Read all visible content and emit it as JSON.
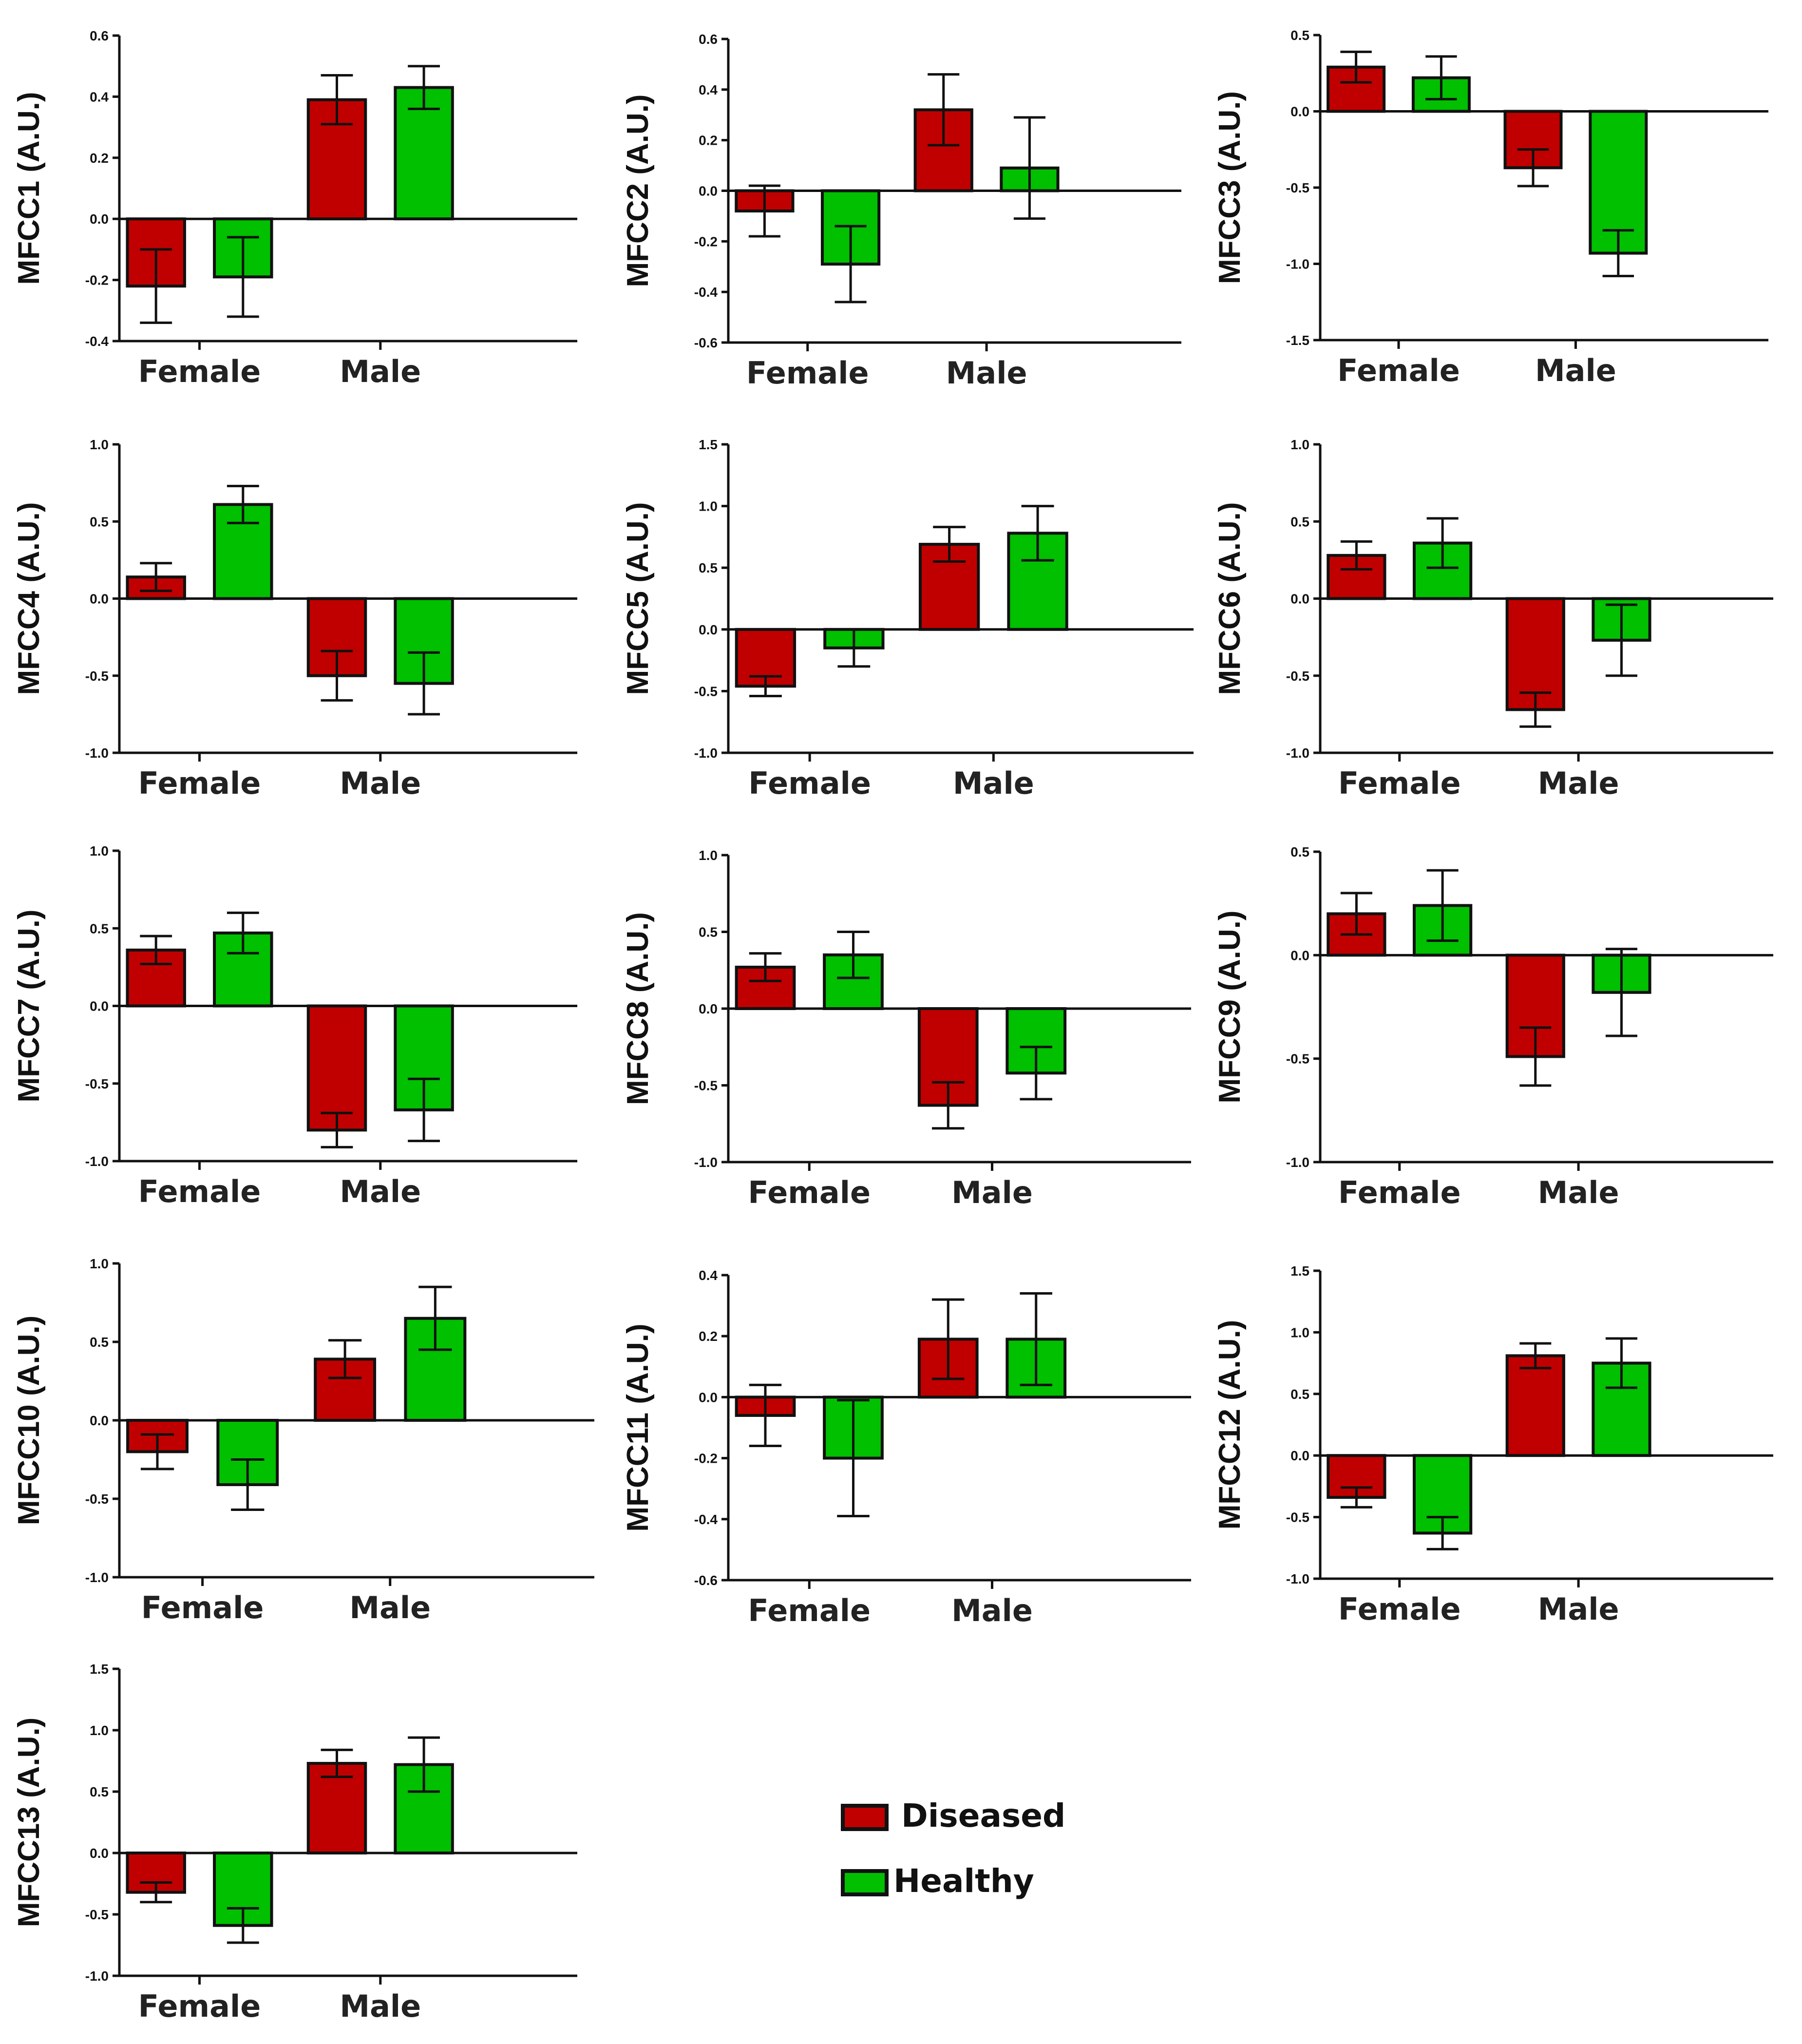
{
  "colors": {
    "diseased": "#c00000",
    "healthy": "#00c000",
    "axis": "#111111"
  },
  "legend": {
    "position": "lower-middle-right",
    "entries": [
      {
        "label": "Diseased",
        "color": "#c00000"
      },
      {
        "label": "Healthy",
        "color": "#00c000"
      }
    ]
  },
  "chart_data": [
    {
      "type": "bar",
      "ylabel": "MFCC1 (A.U.)",
      "categories": [
        "Female",
        "Male"
      ],
      "ylim": [
        -0.4,
        0.6
      ],
      "yticks": [
        -0.4,
        -0.2,
        0.0,
        0.2,
        0.4,
        0.6
      ],
      "ytick_labels": [
        "-0.4",
        "-0.2",
        "0.0",
        "0.2",
        "0.4",
        "0.6"
      ],
      "series": [
        {
          "name": "Diseased",
          "values": [
            -0.22,
            0.39
          ],
          "errors": [
            0.12,
            0.08
          ]
        },
        {
          "name": "Healthy",
          "values": [
            -0.19,
            0.43
          ],
          "errors": [
            0.13,
            0.07
          ]
        }
      ]
    },
    {
      "type": "bar",
      "ylabel": "MFCC2 (A.U.)",
      "categories": [
        "Female",
        "Male"
      ],
      "ylim": [
        -0.6,
        0.6
      ],
      "yticks": [
        -0.6,
        -0.4,
        -0.2,
        0.0,
        0.2,
        0.4,
        0.6
      ],
      "ytick_labels": [
        "-0.6",
        "-0.4",
        "-0.2",
        "0.0",
        "0.2",
        "0.4",
        "0.6"
      ],
      "series": [
        {
          "name": "Diseased",
          "values": [
            -0.08,
            0.32
          ],
          "errors": [
            0.1,
            0.14
          ]
        },
        {
          "name": "Healthy",
          "values": [
            -0.29,
            0.09
          ],
          "errors": [
            0.15,
            0.2
          ]
        }
      ]
    },
    {
      "type": "bar",
      "ylabel": "MFCC3 (A.U.)",
      "categories": [
        "Female",
        "Male"
      ],
      "ylim": [
        -1.5,
        0.5
      ],
      "yticks": [
        -1.5,
        -1.0,
        -0.5,
        0.0,
        0.5
      ],
      "ytick_labels": [
        "-1.5",
        "-1.0",
        "-0.5",
        "0.0",
        "0.5"
      ],
      "series": [
        {
          "name": "Diseased",
          "values": [
            0.29,
            -0.37
          ],
          "errors": [
            0.1,
            0.12
          ]
        },
        {
          "name": "Healthy",
          "values": [
            0.22,
            -0.93
          ],
          "errors": [
            0.14,
            0.15
          ]
        }
      ]
    },
    {
      "type": "bar",
      "ylabel": "MFCC4 (A.U.)",
      "categories": [
        "Female",
        "Male"
      ],
      "ylim": [
        -1.0,
        1.0
      ],
      "yticks": [
        -1.0,
        -0.5,
        0.0,
        0.5,
        1.0
      ],
      "ytick_labels": [
        "-1.0",
        "-0.5",
        "0.0",
        "0.5",
        "1.0"
      ],
      "series": [
        {
          "name": "Diseased",
          "values": [
            0.14,
            -0.5
          ],
          "errors": [
            0.09,
            0.16
          ]
        },
        {
          "name": "Healthy",
          "values": [
            0.61,
            -0.55
          ],
          "errors": [
            0.12,
            0.2
          ]
        }
      ]
    },
    {
      "type": "bar",
      "ylabel": "MFCC5 (A.U.)",
      "categories": [
        "Female",
        "Male"
      ],
      "ylim": [
        -1.0,
        1.5
      ],
      "yticks": [
        -1.0,
        -0.5,
        0.0,
        0.5,
        1.0,
        1.5
      ],
      "ytick_labels": [
        "-1.0",
        "-0.5",
        "0.0",
        "0.5",
        "1.0",
        "1.5"
      ],
      "series": [
        {
          "name": "Diseased",
          "values": [
            -0.46,
            0.69
          ],
          "errors": [
            0.08,
            0.14
          ]
        },
        {
          "name": "Healthy",
          "values": [
            -0.15,
            0.78
          ],
          "errors": [
            0.15,
            0.22
          ]
        }
      ]
    },
    {
      "type": "bar",
      "ylabel": "MFCC6 (A.U.)",
      "categories": [
        "Female",
        "Male"
      ],
      "ylim": [
        -1.0,
        1.0
      ],
      "yticks": [
        -1.0,
        -0.5,
        0.0,
        0.5,
        1.0
      ],
      "ytick_labels": [
        "-1.0",
        "-0.5",
        "0.0",
        "0.5",
        "1.0"
      ],
      "series": [
        {
          "name": "Diseased",
          "values": [
            0.28,
            -0.72
          ],
          "errors": [
            0.09,
            0.11
          ]
        },
        {
          "name": "Healthy",
          "values": [
            0.36,
            -0.27
          ],
          "errors": [
            0.16,
            0.23
          ]
        }
      ]
    },
    {
      "type": "bar",
      "ylabel": "MFCC7 (A.U.)",
      "categories": [
        "Female",
        "Male"
      ],
      "ylim": [
        -1.0,
        1.0
      ],
      "yticks": [
        -1.0,
        -0.5,
        0.0,
        0.5,
        1.0
      ],
      "ytick_labels": [
        "-1.0",
        "-0.5",
        "0.0",
        "0.5",
        "1.0"
      ],
      "series": [
        {
          "name": "Diseased",
          "values": [
            0.36,
            -0.8
          ],
          "errors": [
            0.09,
            0.11
          ]
        },
        {
          "name": "Healthy",
          "values": [
            0.47,
            -0.67
          ],
          "errors": [
            0.13,
            0.2
          ]
        }
      ]
    },
    {
      "type": "bar",
      "ylabel": "MFCC8 (A.U.)",
      "categories": [
        "Female",
        "Male"
      ],
      "ylim": [
        -1.0,
        1.0
      ],
      "yticks": [
        -1.0,
        -0.5,
        0.0,
        0.5,
        1.0
      ],
      "ytick_labels": [
        "-1.0",
        "-0.5",
        "0.0",
        "0.5",
        "1.0"
      ],
      "series": [
        {
          "name": "Diseased",
          "values": [
            0.27,
            -0.63
          ],
          "errors": [
            0.09,
            0.15
          ]
        },
        {
          "name": "Healthy",
          "values": [
            0.35,
            -0.42
          ],
          "errors": [
            0.15,
            0.17
          ]
        }
      ]
    },
    {
      "type": "bar",
      "ylabel": "MFCC9 (A.U.)",
      "categories": [
        "Female",
        "Male"
      ],
      "ylim": [
        -1.0,
        0.5
      ],
      "yticks": [
        -1.0,
        -0.5,
        0.0,
        0.5
      ],
      "ytick_labels": [
        "-1.0",
        "-0.5",
        "0.0",
        "0.5"
      ],
      "series": [
        {
          "name": "Diseased",
          "values": [
            0.2,
            -0.49
          ],
          "errors": [
            0.1,
            0.14
          ]
        },
        {
          "name": "Healthy",
          "values": [
            0.24,
            -0.18
          ],
          "errors": [
            0.17,
            0.21
          ]
        }
      ]
    },
    {
      "type": "bar",
      "ylabel": "MFCC10 (A.U.)",
      "categories": [
        "Female",
        "Male"
      ],
      "ylim": [
        -1.0,
        1.0
      ],
      "yticks": [
        -1.0,
        -0.5,
        0.0,
        0.5,
        1.0
      ],
      "ytick_labels": [
        "-1.0",
        "-0.5",
        "0.0",
        "0.5",
        "1.0"
      ],
      "series": [
        {
          "name": "Diseased",
          "values": [
            -0.2,
            0.39
          ],
          "errors": [
            0.11,
            0.12
          ]
        },
        {
          "name": "Healthy",
          "values": [
            -0.41,
            0.65
          ],
          "errors": [
            0.16,
            0.2
          ]
        }
      ]
    },
    {
      "type": "bar",
      "ylabel": "MFCC11 (A.U.)",
      "categories": [
        "Female",
        "Male"
      ],
      "ylim": [
        -0.6,
        0.4
      ],
      "yticks": [
        -0.6,
        -0.4,
        -0.2,
        0.0,
        0.2,
        0.4
      ],
      "ytick_labels": [
        "-0.6",
        "-0.4",
        "-0.2",
        "0.0",
        "0.2",
        "0.4"
      ],
      "series": [
        {
          "name": "Diseased",
          "values": [
            -0.06,
            0.19
          ],
          "errors": [
            0.1,
            0.13
          ]
        },
        {
          "name": "Healthy",
          "values": [
            -0.2,
            0.19
          ],
          "errors": [
            0.19,
            0.15
          ]
        }
      ]
    },
    {
      "type": "bar",
      "ylabel": "MFCC12 (A.U.)",
      "categories": [
        "Female",
        "Male"
      ],
      "ylim": [
        -1.0,
        1.5
      ],
      "yticks": [
        -1.0,
        -0.5,
        0.0,
        0.5,
        1.0,
        1.5
      ],
      "ytick_labels": [
        "-1.0",
        "-0.5",
        "0.0",
        "0.5",
        "1.0",
        "1.5"
      ],
      "series": [
        {
          "name": "Diseased",
          "values": [
            -0.34,
            0.81
          ],
          "errors": [
            0.08,
            0.1
          ]
        },
        {
          "name": "Healthy",
          "values": [
            -0.63,
            0.75
          ],
          "errors": [
            0.13,
            0.2
          ]
        }
      ]
    },
    {
      "type": "bar",
      "ylabel": "MFCC13 (A.U.)",
      "categories": [
        "Female",
        "Male"
      ],
      "ylim": [
        -1.0,
        1.5
      ],
      "yticks": [
        -1.0,
        -0.5,
        0.0,
        0.5,
        1.0,
        1.5
      ],
      "ytick_labels": [
        "-1.0",
        "-0.5",
        "0.0",
        "0.5",
        "1.0",
        "1.5"
      ],
      "series": [
        {
          "name": "Diseased",
          "values": [
            -0.32,
            0.73
          ],
          "errors": [
            0.08,
            0.11
          ]
        },
        {
          "name": "Healthy",
          "values": [
            -0.59,
            0.72
          ],
          "errors": [
            0.14,
            0.22
          ]
        }
      ]
    }
  ]
}
